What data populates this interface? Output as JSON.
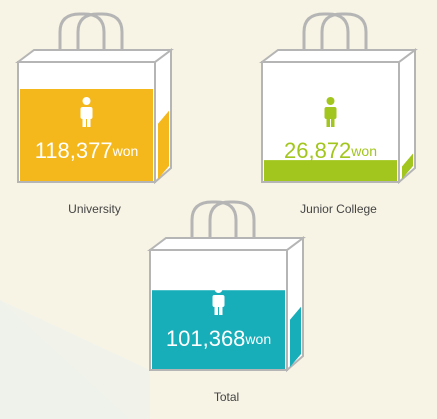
{
  "chart_data": {
    "type": "bag",
    "categories": [
      "University",
      "Junior College",
      "Total"
    ],
    "values": [
      118377,
      26872,
      101368
    ],
    "value_labels": [
      "118,377",
      "26,872",
      "101,368"
    ],
    "unit": "won",
    "colors": [
      "#f4b81c",
      "#a2c61e",
      "#17aeb9"
    ]
  }
}
